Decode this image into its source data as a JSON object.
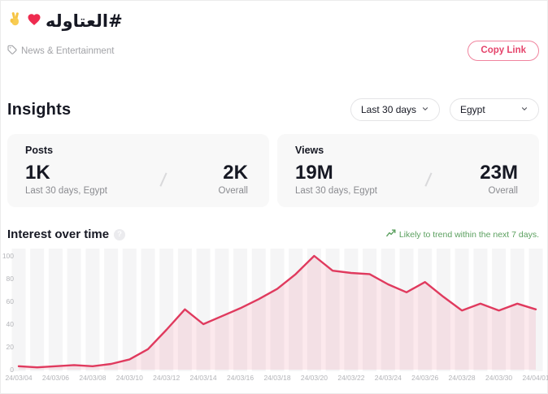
{
  "header": {
    "hashtag": "#العتاوله",
    "emoji_hand_icon": "victory-hand-icon",
    "emoji_heart_icon": "heart-icon",
    "category": "News & Entertainment",
    "category_icon": "tag-icon",
    "copy_link_label": "Copy Link"
  },
  "insights": {
    "title": "Insights",
    "filters": {
      "time_range": "Last 30 days",
      "region": "Egypt"
    }
  },
  "stats": [
    {
      "label": "Posts",
      "primary_value": "1K",
      "primary_caption": "Last 30 days, Egypt",
      "secondary_value": "2K",
      "secondary_caption": "Overall"
    },
    {
      "label": "Views",
      "primary_value": "19M",
      "primary_caption": "Last 30 days, Egypt",
      "secondary_value": "23M",
      "secondary_caption": "Overall"
    }
  ],
  "interest": {
    "title": "Interest over time",
    "info_icon": "info-icon",
    "trend_icon": "trend-up-icon",
    "trend_note": "Likely to trend within the next 7 days."
  },
  "colors": {
    "accent": "#e5446b",
    "line": "#e03a5e",
    "area_fill": "rgba(226,58,95,0.11)",
    "grid_band": "#f5f5f6",
    "trend_green": "#5ba05f",
    "card_bg": "#f8f8f8"
  },
  "chart_data": {
    "type": "area",
    "title": "Interest over time",
    "x": [
      "24/03/04",
      "24/03/05",
      "24/03/06",
      "24/03/07",
      "24/03/08",
      "24/03/09",
      "24/03/10",
      "24/03/11",
      "24/03/12",
      "24/03/13",
      "24/03/14",
      "24/03/15",
      "24/03/16",
      "24/03/17",
      "24/03/18",
      "24/03/19",
      "24/03/20",
      "24/03/21",
      "24/03/22",
      "24/03/23",
      "24/03/24",
      "24/03/25",
      "24/03/26",
      "24/03/27",
      "24/03/28",
      "24/03/29",
      "24/03/30",
      "24/03/31",
      "24/04/01"
    ],
    "values": [
      3,
      2,
      3,
      4,
      3,
      5,
      9,
      18,
      35,
      53,
      40,
      47,
      54,
      62,
      71,
      84,
      100,
      87,
      85,
      84,
      75,
      68,
      77,
      64,
      52,
      58,
      52,
      58,
      53
    ],
    "x_tick_labels": [
      "24/03/04",
      "24/03/06",
      "24/03/08",
      "24/03/10",
      "24/03/12",
      "24/03/14",
      "24/03/16",
      "24/03/18",
      "24/03/20",
      "24/03/22",
      "24/03/24",
      "24/03/26",
      "24/03/28",
      "24/03/30",
      "24/04/01"
    ],
    "yticks": [
      0,
      20,
      40,
      60,
      80,
      100
    ],
    "ylim": [
      0,
      100
    ],
    "xlabel": "",
    "ylabel": "",
    "grid": "vertical-bands",
    "legend": "none"
  }
}
